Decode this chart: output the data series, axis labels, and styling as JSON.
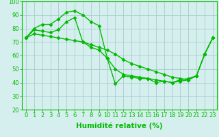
{
  "xlabel": "Humidité relative (%)",
  "x": [
    0,
    1,
    2,
    3,
    4,
    5,
    6,
    7,
    8,
    9,
    10,
    11,
    12,
    13,
    14,
    15,
    16,
    17,
    18,
    19,
    20,
    21,
    22,
    23
  ],
  "line1": [
    73,
    80,
    83,
    83,
    87,
    92,
    93,
    90,
    85,
    82,
    58,
    39,
    45,
    44,
    43,
    43,
    40,
    41,
    40,
    42,
    43,
    45,
    61,
    73
  ],
  "line2": [
    73,
    79,
    78,
    77,
    79,
    85,
    88,
    70,
    66,
    64,
    58,
    50,
    46,
    45,
    44,
    43,
    42,
    41,
    40,
    41,
    42,
    45,
    61,
    73
  ],
  "line3": [
    73,
    76,
    75,
    74,
    73,
    72,
    71,
    70,
    68,
    66,
    64,
    61,
    57,
    54,
    52,
    50,
    48,
    46,
    44,
    43,
    42,
    45,
    61,
    73
  ],
  "line_color": "#00bb00",
  "bg_color": "#d5eeee",
  "grid_color": "#aacccc",
  "ylim": [
    20,
    100
  ],
  "yticks": [
    20,
    30,
    40,
    50,
    60,
    70,
    80,
    90,
    100
  ],
  "xticks": [
    0,
    1,
    2,
    3,
    4,
    5,
    6,
    7,
    8,
    9,
    10,
    11,
    12,
    13,
    14,
    15,
    16,
    17,
    18,
    19,
    20,
    21,
    22,
    23
  ],
  "marker": "D",
  "markersize": 2.5,
  "linewidth": 1.0,
  "xlabel_fontsize": 7.5,
  "tick_fontsize": 6.0
}
